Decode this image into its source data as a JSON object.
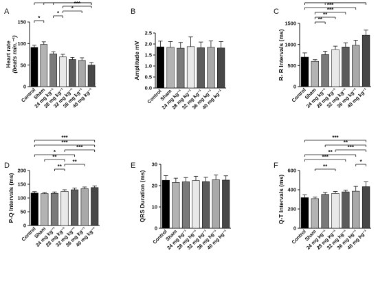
{
  "categories": [
    "Control",
    "Sham",
    "24 mg kg⁻¹",
    "28 mg kg⁻¹",
    "32 mg kg⁻¹",
    "36 mg kg⁻¹",
    "40 mg kg⁻¹"
  ],
  "bar_colors": [
    "#000000",
    "#b3b3b3",
    "#7a7a7a",
    "#e8e8e8",
    "#5c5c5c",
    "#a9a9a9",
    "#474747"
  ],
  "chart_data": [
    {
      "type": "bar",
      "panel": "A",
      "ylabel": "Heart rate",
      "ylabel2": "(beats min.⁻¹)",
      "ylim": [
        0,
        150
      ],
      "yticks": [
        0,
        50,
        100,
        150
      ],
      "values": [
        91,
        98,
        76,
        69,
        63,
        61,
        50
      ],
      "errors": [
        5,
        6,
        5,
        6,
        5,
        6,
        6
      ],
      "significance": [
        {
          "from": 0,
          "to": 1,
          "label": "*"
        },
        {
          "from": 2,
          "to": 3,
          "label": "*"
        },
        {
          "from": 3,
          "to": 5,
          "label": "*"
        },
        {
          "from": 3,
          "to": 6,
          "label": "***"
        },
        {
          "from": 2,
          "to": 6,
          "label": "***"
        },
        {
          "from": 1,
          "to": 6,
          "label": "***"
        },
        {
          "from": 0,
          "to": 6,
          "label": "***"
        }
      ]
    },
    {
      "type": "bar",
      "panel": "B",
      "ylabel": "Amplitude mV",
      "ylim": [
        0,
        2.5
      ],
      "yticks": [
        0,
        0.5,
        1.0,
        1.5,
        2.0,
        2.5
      ],
      "values": [
        1.87,
        1.85,
        1.81,
        1.88,
        1.83,
        1.85,
        1.82
      ],
      "errors": [
        0.26,
        0.26,
        0.26,
        0.44,
        0.26,
        0.29,
        0.29
      ],
      "significance": []
    },
    {
      "type": "bar",
      "panel": "C",
      "ylabel": "R- R Intervals (ms)",
      "ylim": [
        0,
        1500
      ],
      "yticks": [
        0,
        500,
        1000,
        1500
      ],
      "values": [
        700,
        600,
        760,
        880,
        940,
        980,
        1220
      ],
      "errors": [
        100,
        40,
        80,
        80,
        100,
        120,
        120
      ],
      "significance": [
        {
          "from": 1,
          "to": 2,
          "label": "**"
        },
        {
          "from": 1,
          "to": 3,
          "label": "**"
        },
        {
          "from": 1,
          "to": 4,
          "label": "***"
        },
        {
          "from": 0,
          "to": 5,
          "label": "***"
        },
        {
          "from": 0,
          "to": 6,
          "label": "***"
        },
        {
          "from": 0,
          "to": 6,
          "label": "***"
        },
        {
          "from": 2,
          "to": 6,
          "label": "***"
        }
      ]
    },
    {
      "type": "bar",
      "panel": "D",
      "ylabel": "P-Q Intervals (ms)",
      "ylim": [
        0,
        200
      ],
      "yticks": [
        0,
        50,
        100,
        150,
        200
      ],
      "values": [
        118,
        116,
        117,
        124,
        130,
        134,
        138
      ],
      "errors": [
        5,
        4,
        5,
        6,
        6,
        6,
        6
      ],
      "significance": [
        {
          "from": 2,
          "to": 3,
          "label": "**"
        },
        {
          "from": 3,
          "to": 5,
          "label": "**"
        },
        {
          "from": 1,
          "to": 3,
          "label": "**"
        },
        {
          "from": 0,
          "to": 4,
          "label": "*"
        },
        {
          "from": 3,
          "to": 6,
          "label": "***"
        },
        {
          "from": 0,
          "to": 6,
          "label": "***"
        },
        {
          "from": 0,
          "to": 6,
          "label": "***"
        }
      ]
    },
    {
      "type": "bar",
      "panel": "E",
      "ylabel": "QRS Duration (ms)",
      "ylim": [
        0,
        30
      ],
      "yticks": [
        0,
        10,
        20,
        30
      ],
      "values": [
        22.5,
        21.5,
        21.8,
        22.4,
        21.9,
        22.8,
        22.6
      ],
      "errors": [
        2.2,
        2.0,
        2.0,
        2.0,
        2.0,
        2.2,
        2.0
      ],
      "significance": []
    },
    {
      "type": "bar",
      "panel": "F",
      "ylabel": "Q-T Intervals (ms)",
      "ylim": [
        0,
        600
      ],
      "yticks": [
        0,
        200,
        400,
        600
      ],
      "values": [
        318,
        308,
        352,
        362,
        378,
        385,
        432
      ],
      "errors": [
        30,
        15,
        20,
        20,
        18,
        50,
        50
      ],
      "significance": [
        {
          "from": 1,
          "to": 3,
          "label": "**"
        },
        {
          "from": 5,
          "to": 6,
          "label": "*"
        },
        {
          "from": 0,
          "to": 4,
          "label": "***"
        },
        {
          "from": 0,
          "to": 5,
          "label": "**"
        },
        {
          "from": 3,
          "to": 6,
          "label": "***"
        },
        {
          "from": 2,
          "to": 6,
          "label": "**"
        },
        {
          "from": 0,
          "to": 6,
          "label": "***"
        }
      ]
    }
  ]
}
